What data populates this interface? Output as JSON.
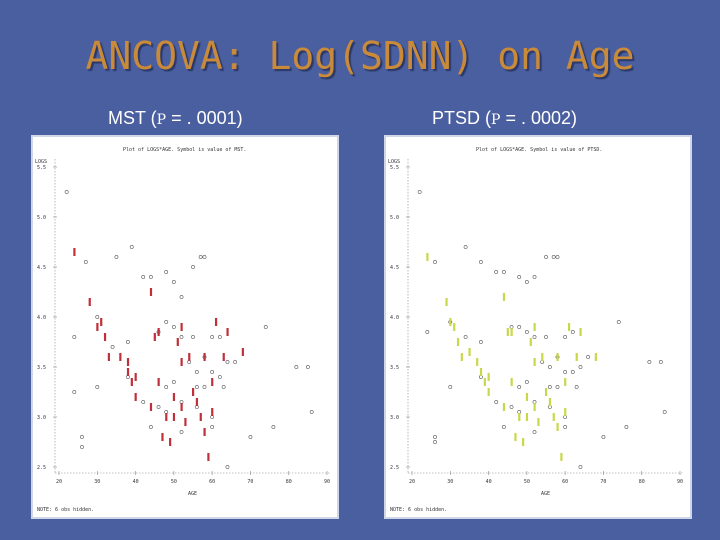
{
  "slide": {
    "title": "ANCOVA: Log(SDNN) on Age",
    "left_caption": {
      "prefix": "MST (",
      "p_symbol": "P",
      "suffix": " = . 0001)"
    },
    "right_caption": {
      "prefix": "PTSD (",
      "p_symbol": "P",
      "suffix": " = . 0002)"
    }
  },
  "colors": {
    "background": "#4a5fa0",
    "title": "#c98a3a",
    "mst_marker": "#c0303a",
    "ptsd_marker": "#c8d84a",
    "other_marker": "#555555"
  },
  "chart_data": [
    {
      "type": "scatter",
      "title": "Plot of LOGS*AGE.  Symbol is value of MST.",
      "ylabel": "LOGS",
      "xlabel": "AGE",
      "note": "NOTE: 6 obs hidden.",
      "xlim": [
        20,
        90
      ],
      "ylim": [
        2.5,
        5.5
      ],
      "xticks": [
        "20",
        "30",
        "40",
        "50",
        "60",
        "70",
        "80",
        "90"
      ],
      "yticks": [
        "5.5",
        "5.0",
        "4.5",
        "4.0",
        "3.5",
        "3.0",
        "2.5"
      ],
      "series": [
        {
          "name": "0",
          "marker": "o",
          "points": [
            [
              22,
              5.25
            ],
            [
              27,
              4.55
            ],
            [
              35,
              4.6
            ],
            [
              39,
              4.7
            ],
            [
              42,
              4.4
            ],
            [
              44,
              4.4
            ],
            [
              48,
              4.45
            ],
            [
              50,
              4.35
            ],
            [
              52,
              4.2
            ],
            [
              55,
              4.5
            ],
            [
              57,
              4.6
            ],
            [
              58,
              4.6
            ],
            [
              24,
              3.8
            ],
            [
              30,
              4.0
            ],
            [
              34,
              3.7
            ],
            [
              38,
              3.75
            ],
            [
              46,
              3.85
            ],
            [
              48,
              3.95
            ],
            [
              50,
              3.9
            ],
            [
              52,
              3.8
            ],
            [
              55,
              3.8
            ],
            [
              58,
              3.6
            ],
            [
              60,
              3.8
            ],
            [
              62,
              3.8
            ],
            [
              54,
              3.55
            ],
            [
              56,
              3.45
            ],
            [
              60,
              3.45
            ],
            [
              62,
              3.4
            ],
            [
              64,
              3.55
            ],
            [
              66,
              3.55
            ],
            [
              48,
              3.3
            ],
            [
              50,
              3.35
            ],
            [
              56,
              3.3
            ],
            [
              58,
              3.3
            ],
            [
              63,
              3.3
            ],
            [
              42,
              3.15
            ],
            [
              46,
              3.1
            ],
            [
              48,
              3.05
            ],
            [
              52,
              3.15
            ],
            [
              56,
              3.1
            ],
            [
              60,
              3.0
            ],
            [
              44,
              2.9
            ],
            [
              52,
              2.85
            ],
            [
              60,
              2.9
            ],
            [
              24,
              3.25
            ],
            [
              30,
              3.3
            ],
            [
              26,
              2.8
            ],
            [
              26,
              2.7
            ],
            [
              70,
              2.8
            ],
            [
              76,
              2.9
            ],
            [
              74,
              3.9
            ],
            [
              82,
              3.5
            ],
            [
              85,
              3.5
            ],
            [
              86,
              3.05
            ],
            [
              64,
              2.5
            ],
            [
              38,
              3.4
            ]
          ]
        },
        {
          "name": "1",
          "marker": "1",
          "points": [
            [
              24,
              4.65
            ],
            [
              28,
              4.15
            ],
            [
              30,
              3.9
            ],
            [
              31,
              3.95
            ],
            [
              32,
              3.8
            ],
            [
              33,
              3.6
            ],
            [
              36,
              3.6
            ],
            [
              38,
              3.45
            ],
            [
              38,
              3.55
            ],
            [
              40,
              3.4
            ],
            [
              39,
              3.35
            ],
            [
              40,
              3.2
            ],
            [
              44,
              3.1
            ],
            [
              48,
              3.0
            ],
            [
              46,
              3.35
            ],
            [
              50,
              3.2
            ],
            [
              52,
              3.1
            ],
            [
              50,
              3.0
            ],
            [
              47,
              2.8
            ],
            [
              49,
              2.75
            ],
            [
              53,
              2.95
            ],
            [
              55,
              3.25
            ],
            [
              52,
              3.55
            ],
            [
              54,
              3.6
            ],
            [
              45,
              3.8
            ],
            [
              44,
              4.25
            ],
            [
              46,
              3.85
            ],
            [
              57,
              3.0
            ],
            [
              58,
              2.85
            ],
            [
              60,
              3.35
            ],
            [
              59,
              2.6
            ],
            [
              61,
              3.95
            ],
            [
              64,
              3.85
            ],
            [
              68,
              3.65
            ],
            [
              60,
              3.05
            ],
            [
              58,
              3.6
            ],
            [
              51,
              3.75
            ],
            [
              56,
              3.15
            ],
            [
              52,
              3.9
            ],
            [
              63,
              3.6
            ]
          ]
        }
      ]
    },
    {
      "type": "scatter",
      "title": "Plot of LOGS*AGE.  Symbol is value of PTSD.",
      "ylabel": "LOGS",
      "xlabel": "AGE",
      "note": "NOTE: 6 obs hidden.",
      "xlim": [
        20,
        90
      ],
      "ylim": [
        2.5,
        5.5
      ],
      "xticks": [
        "20",
        "30",
        "40",
        "50",
        "60",
        "70",
        "80",
        "90"
      ],
      "yticks": [
        "5.5",
        "5.0",
        "4.5",
        "4.0",
        "3.5",
        "3.0",
        "2.5"
      ],
      "series": [
        {
          "name": "0",
          "marker": "o",
          "points": [
            [
              22,
              5.25
            ],
            [
              26,
              4.55
            ],
            [
              34,
              4.7
            ],
            [
              38,
              4.55
            ],
            [
              42,
              4.45
            ],
            [
              44,
              4.45
            ],
            [
              48,
              4.4
            ],
            [
              50,
              4.35
            ],
            [
              52,
              4.4
            ],
            [
              55,
              4.6
            ],
            [
              57,
              4.6
            ],
            [
              58,
              4.6
            ],
            [
              24,
              3.85
            ],
            [
              30,
              3.95
            ],
            [
              34,
              3.8
            ],
            [
              38,
              3.75
            ],
            [
              46,
              3.9
            ],
            [
              48,
              3.9
            ],
            [
              50,
              3.85
            ],
            [
              52,
              3.8
            ],
            [
              55,
              3.8
            ],
            [
              58,
              3.6
            ],
            [
              60,
              3.8
            ],
            [
              62,
              3.85
            ],
            [
              54,
              3.55
            ],
            [
              56,
              3.5
            ],
            [
              60,
              3.45
            ],
            [
              62,
              3.45
            ],
            [
              64,
              3.5
            ],
            [
              66,
              3.6
            ],
            [
              48,
              3.3
            ],
            [
              50,
              3.35
            ],
            [
              56,
              3.3
            ],
            [
              58,
              3.3
            ],
            [
              63,
              3.3
            ],
            [
              42,
              3.15
            ],
            [
              46,
              3.1
            ],
            [
              48,
              3.05
            ],
            [
              52,
              3.15
            ],
            [
              56,
              3.1
            ],
            [
              60,
              3.0
            ],
            [
              44,
              2.9
            ],
            [
              52,
              2.85
            ],
            [
              60,
              2.9
            ],
            [
              30,
              3.3
            ],
            [
              26,
              2.8
            ],
            [
              26,
              2.75
            ],
            [
              70,
              2.8
            ],
            [
              76,
              2.9
            ],
            [
              74,
              3.95
            ],
            [
              82,
              3.55
            ],
            [
              85,
              3.55
            ],
            [
              86,
              3.05
            ],
            [
              64,
              2.5
            ],
            [
              38,
              3.4
            ]
          ]
        },
        {
          "name": "1",
          "marker": "1",
          "points": [
            [
              24,
              4.6
            ],
            [
              29,
              4.15
            ],
            [
              31,
              3.9
            ],
            [
              30,
              3.95
            ],
            [
              32,
              3.75
            ],
            [
              33,
              3.6
            ],
            [
              35,
              3.65
            ],
            [
              38,
              3.45
            ],
            [
              37,
              3.55
            ],
            [
              40,
              3.4
            ],
            [
              39,
              3.35
            ],
            [
              40,
              3.25
            ],
            [
              44,
              3.1
            ],
            [
              48,
              3.0
            ],
            [
              46,
              3.35
            ],
            [
              50,
              3.2
            ],
            [
              52,
              3.1
            ],
            [
              50,
              3.0
            ],
            [
              47,
              2.8
            ],
            [
              49,
              2.75
            ],
            [
              53,
              2.95
            ],
            [
              55,
              3.25
            ],
            [
              52,
              3.55
            ],
            [
              54,
              3.6
            ],
            [
              45,
              3.85
            ],
            [
              44,
              4.2
            ],
            [
              46,
              3.85
            ],
            [
              57,
              3.0
            ],
            [
              58,
              2.9
            ],
            [
              60,
              3.35
            ],
            [
              59,
              2.6
            ],
            [
              61,
              3.9
            ],
            [
              64,
              3.85
            ],
            [
              68,
              3.6
            ],
            [
              60,
              3.05
            ],
            [
              58,
              3.6
            ],
            [
              51,
              3.75
            ],
            [
              56,
              3.15
            ],
            [
              52,
              3.9
            ],
            [
              63,
              3.6
            ]
          ]
        }
      ]
    }
  ]
}
